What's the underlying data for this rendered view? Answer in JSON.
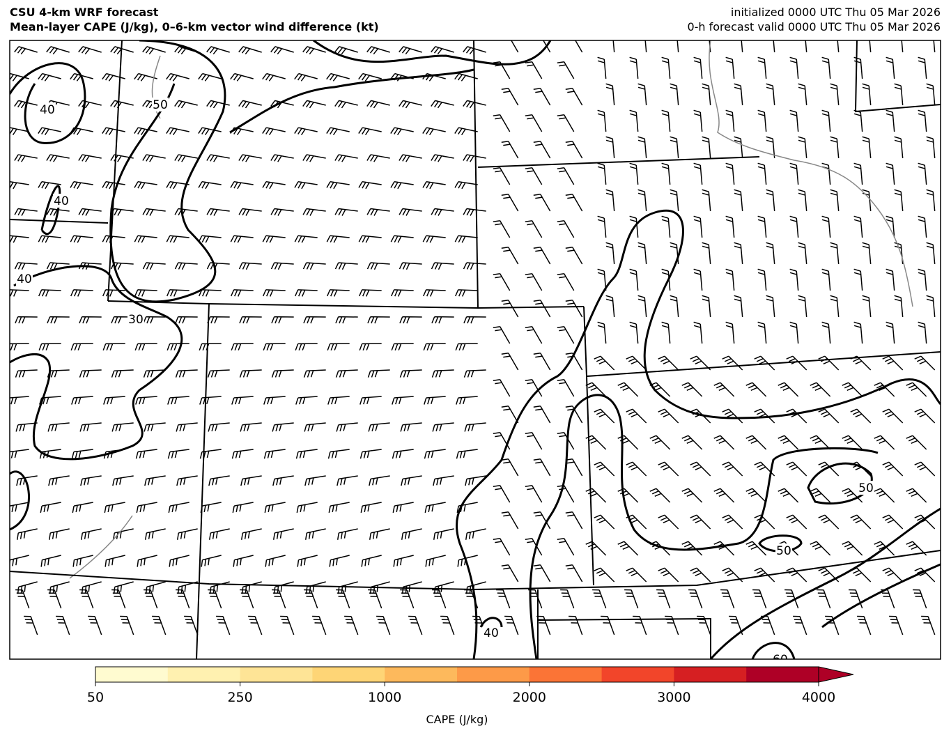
{
  "header": {
    "title_lines": [
      "CSU 4-km WRF forecast",
      "Mean-layer CAPE (J/kg), 0–6-km vector wind difference (kt)"
    ],
    "time_lines": [
      "initialized 0000 UTC Thu 05 Mar 2026",
      "0-h forecast valid 0000 UTC Thu 05 Mar 2026"
    ]
  },
  "map": {
    "contour_labels": [
      "40",
      "50",
      "40",
      "40",
      "30",
      "50",
      "50",
      "40",
      "60"
    ]
  },
  "colorbar": {
    "label": "CAPE (J/kg)",
    "levels": [
      50,
      100,
      250,
      500,
      1000,
      1500,
      2000,
      2500,
      3000,
      3500,
      4000
    ],
    "colors": [
      "#fffbd0",
      "#fff1b0",
      "#fee496",
      "#fed576",
      "#fdb95c",
      "#fd9a48",
      "#fb7436",
      "#f2452a",
      "#d61f22",
      "#ae0026"
    ],
    "ticks": [
      50,
      250,
      1000,
      2000,
      3000,
      4000
    ]
  }
}
